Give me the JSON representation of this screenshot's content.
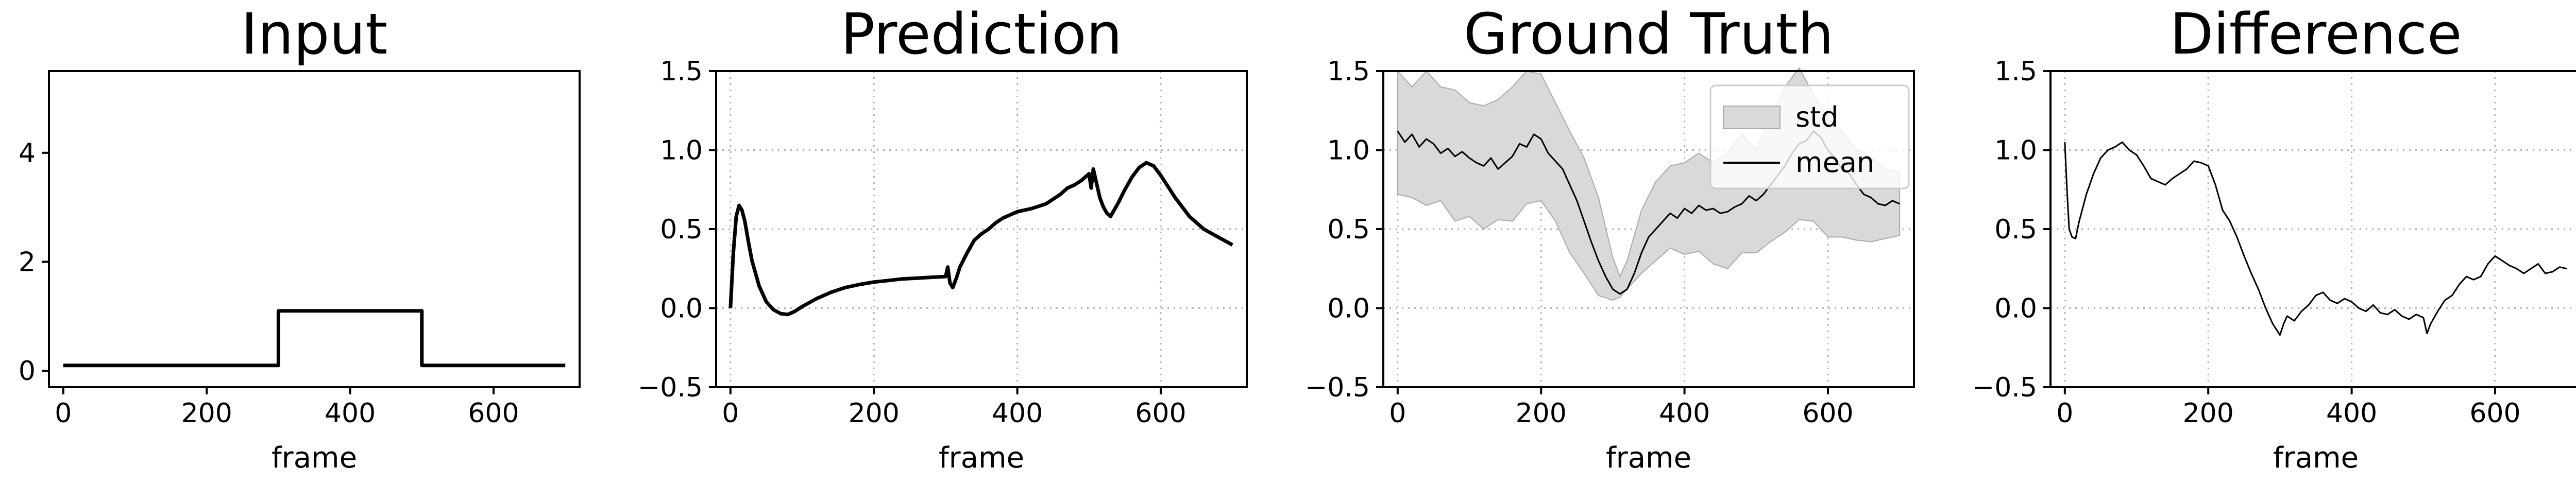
{
  "chart_data": [
    {
      "type": "line",
      "title": "Input",
      "xlabel": "frame",
      "ylabel": "",
      "xlim": [
        -20,
        720
      ],
      "ylim": [
        -0.3,
        5.5
      ],
      "xticks": [
        0,
        200,
        400,
        600
      ],
      "yticks": [
        0,
        2,
        4
      ],
      "ytick_labels": [
        "0",
        "2",
        "4"
      ],
      "grid": false,
      "series": [
        {
          "color": "#000000",
          "x": [
            0,
            300,
            300,
            500,
            500,
            700
          ],
          "y": [
            0.1,
            0.1,
            1.1,
            1.1,
            0.1,
            0.1
          ]
        }
      ]
    },
    {
      "type": "line",
      "title": "Prediction",
      "xlabel": "frame",
      "ylabel": "",
      "xlim": [
        -20,
        720
      ],
      "ylim": [
        -0.5,
        1.5
      ],
      "xticks": [
        0,
        200,
        400,
        600
      ],
      "yticks": [
        -0.5,
        0,
        0.5,
        1,
        1.5
      ],
      "ytick_labels": [
        "−0.5",
        "0.0",
        "0.5",
        "1.0",
        "1.5"
      ],
      "grid": true,
      "series": [
        {
          "color": "#000000",
          "x": [
            0,
            4,
            8,
            12,
            16,
            20,
            25,
            30,
            40,
            50,
            60,
            70,
            80,
            90,
            100,
            120,
            140,
            160,
            180,
            200,
            220,
            240,
            260,
            280,
            300,
            303,
            306,
            310,
            315,
            320,
            330,
            340,
            350,
            360,
            370,
            380,
            400,
            420,
            440,
            460,
            470,
            480,
            490,
            500,
            503,
            506,
            510,
            515,
            520,
            525,
            530,
            540,
            550,
            560,
            570,
            580,
            590,
            600,
            620,
            640,
            660,
            680,
            700
          ],
          "y": [
            0.0,
            0.35,
            0.58,
            0.65,
            0.62,
            0.55,
            0.42,
            0.3,
            0.14,
            0.04,
            -0.01,
            -0.035,
            -0.04,
            -0.02,
            0.01,
            0.06,
            0.1,
            0.13,
            0.15,
            0.165,
            0.175,
            0.185,
            0.19,
            0.195,
            0.2,
            0.26,
            0.16,
            0.13,
            0.19,
            0.26,
            0.35,
            0.43,
            0.47,
            0.5,
            0.54,
            0.57,
            0.61,
            0.63,
            0.66,
            0.72,
            0.76,
            0.78,
            0.81,
            0.85,
            0.76,
            0.88,
            0.8,
            0.7,
            0.64,
            0.6,
            0.58,
            0.66,
            0.75,
            0.83,
            0.89,
            0.92,
            0.9,
            0.84,
            0.7,
            0.58,
            0.5,
            0.45,
            0.4
          ]
        }
      ]
    },
    {
      "type": "area",
      "title": "Ground Truth",
      "xlabel": "frame",
      "ylabel": "",
      "xlim": [
        -20,
        720
      ],
      "ylim": [
        -0.5,
        1.5
      ],
      "xticks": [
        0,
        200,
        400,
        600
      ],
      "yticks": [
        -0.5,
        0,
        0.5,
        1,
        1.5
      ],
      "ytick_labels": [
        "−0.5",
        "0.0",
        "0.5",
        "1.0",
        "1.5"
      ],
      "grid": true,
      "legend": {
        "position": "top-right",
        "entries": [
          "std",
          "mean"
        ]
      },
      "series": [
        {
          "name": "std",
          "color": "#d9d9d9",
          "x": [
            0,
            20,
            40,
            60,
            80,
            100,
            120,
            140,
            160,
            180,
            200,
            220,
            240,
            260,
            280,
            300,
            310,
            320,
            340,
            360,
            380,
            400,
            420,
            440,
            460,
            480,
            500,
            520,
            540,
            560,
            580,
            600,
            620,
            640,
            660,
            680,
            700
          ],
          "upper": [
            1.5,
            1.4,
            1.5,
            1.4,
            1.38,
            1.3,
            1.28,
            1.32,
            1.4,
            1.5,
            1.48,
            1.3,
            1.12,
            0.95,
            0.7,
            0.32,
            0.2,
            0.3,
            0.62,
            0.8,
            0.9,
            0.92,
            0.98,
            0.92,
            0.98,
            1.1,
            1.0,
            1.2,
            1.4,
            1.52,
            1.35,
            1.2,
            1.12,
            1.0,
            0.95,
            0.88,
            0.86
          ],
          "lower": [
            0.72,
            0.7,
            0.65,
            0.68,
            0.55,
            0.58,
            0.5,
            0.56,
            0.55,
            0.66,
            0.68,
            0.55,
            0.35,
            0.22,
            0.08,
            0.05,
            0.07,
            0.12,
            0.22,
            0.3,
            0.38,
            0.34,
            0.36,
            0.28,
            0.25,
            0.35,
            0.35,
            0.42,
            0.48,
            0.56,
            0.55,
            0.45,
            0.45,
            0.43,
            0.42,
            0.44,
            0.46
          ]
        },
        {
          "name": "mean",
          "color": "#000000",
          "x": [
            0,
            10,
            20,
            30,
            40,
            50,
            60,
            70,
            80,
            90,
            100,
            110,
            120,
            130,
            140,
            150,
            160,
            170,
            180,
            190,
            200,
            210,
            220,
            230,
            240,
            250,
            260,
            270,
            280,
            290,
            300,
            310,
            320,
            330,
            340,
            350,
            360,
            370,
            380,
            390,
            400,
            410,
            420,
            430,
            440,
            450,
            460,
            470,
            480,
            490,
            500,
            510,
            520,
            530,
            540,
            550,
            560,
            570,
            580,
            590,
            600,
            610,
            620,
            630,
            640,
            650,
            660,
            670,
            680,
            690,
            700
          ],
          "y": [
            1.12,
            1.05,
            1.1,
            1.02,
            1.07,
            1.04,
            0.98,
            1.01,
            0.96,
            0.99,
            0.95,
            0.92,
            0.9,
            0.95,
            0.88,
            0.92,
            0.96,
            1.04,
            1.02,
            1.1,
            1.07,
            0.98,
            0.93,
            0.88,
            0.78,
            0.68,
            0.55,
            0.42,
            0.3,
            0.2,
            0.12,
            0.09,
            0.12,
            0.22,
            0.35,
            0.45,
            0.5,
            0.55,
            0.6,
            0.57,
            0.63,
            0.6,
            0.65,
            0.62,
            0.63,
            0.6,
            0.61,
            0.64,
            0.66,
            0.71,
            0.68,
            0.72,
            0.78,
            0.84,
            0.9,
            0.98,
            1.04,
            1.06,
            1.12,
            1.08,
            1.0,
            0.95,
            0.88,
            0.85,
            0.78,
            0.72,
            0.7,
            0.66,
            0.65,
            0.68,
            0.66
          ]
        }
      ]
    },
    {
      "type": "line",
      "title": "Difference",
      "xlabel": "frame",
      "ylabel": "",
      "xlim": [
        -20,
        720
      ],
      "ylim": [
        -0.5,
        1.5
      ],
      "xticks": [
        0,
        200,
        400,
        600
      ],
      "yticks": [
        -0.5,
        0,
        0.5,
        1,
        1.5
      ],
      "ytick_labels": [
        "−0.5",
        "0.0",
        "0.5",
        "1.0",
        "1.5"
      ],
      "grid": true,
      "series": [
        {
          "color": "#000000",
          "x": [
            0,
            3,
            6,
            10,
            15,
            20,
            30,
            40,
            50,
            60,
            70,
            80,
            90,
            100,
            110,
            120,
            130,
            140,
            150,
            160,
            170,
            180,
            190,
            200,
            210,
            220,
            230,
            240,
            250,
            260,
            270,
            280,
            290,
            300,
            305,
            310,
            320,
            330,
            340,
            350,
            360,
            370,
            380,
            390,
            400,
            410,
            420,
            430,
            440,
            450,
            460,
            470,
            480,
            490,
            500,
            505,
            510,
            520,
            530,
            540,
            550,
            560,
            570,
            580,
            590,
            600,
            610,
            620,
            630,
            640,
            650,
            660,
            670,
            680,
            690,
            700
          ],
          "y": [
            1.05,
            0.75,
            0.5,
            0.45,
            0.44,
            0.55,
            0.72,
            0.85,
            0.95,
            1.0,
            1.02,
            1.05,
            1.0,
            0.97,
            0.9,
            0.82,
            0.8,
            0.78,
            0.82,
            0.85,
            0.88,
            0.93,
            0.92,
            0.9,
            0.78,
            0.62,
            0.55,
            0.45,
            0.33,
            0.22,
            0.12,
            0.0,
            -0.1,
            -0.17,
            -0.1,
            -0.05,
            -0.08,
            -0.02,
            0.02,
            0.08,
            0.1,
            0.05,
            0.03,
            0.06,
            0.04,
            0.0,
            -0.02,
            0.02,
            -0.03,
            -0.04,
            -0.01,
            -0.05,
            -0.07,
            -0.04,
            -0.06,
            -0.16,
            -0.1,
            -0.02,
            0.05,
            0.08,
            0.15,
            0.2,
            0.18,
            0.2,
            0.28,
            0.33,
            0.3,
            0.27,
            0.25,
            0.22,
            0.25,
            0.28,
            0.22,
            0.23,
            0.26,
            0.25
          ]
        }
      ]
    }
  ]
}
